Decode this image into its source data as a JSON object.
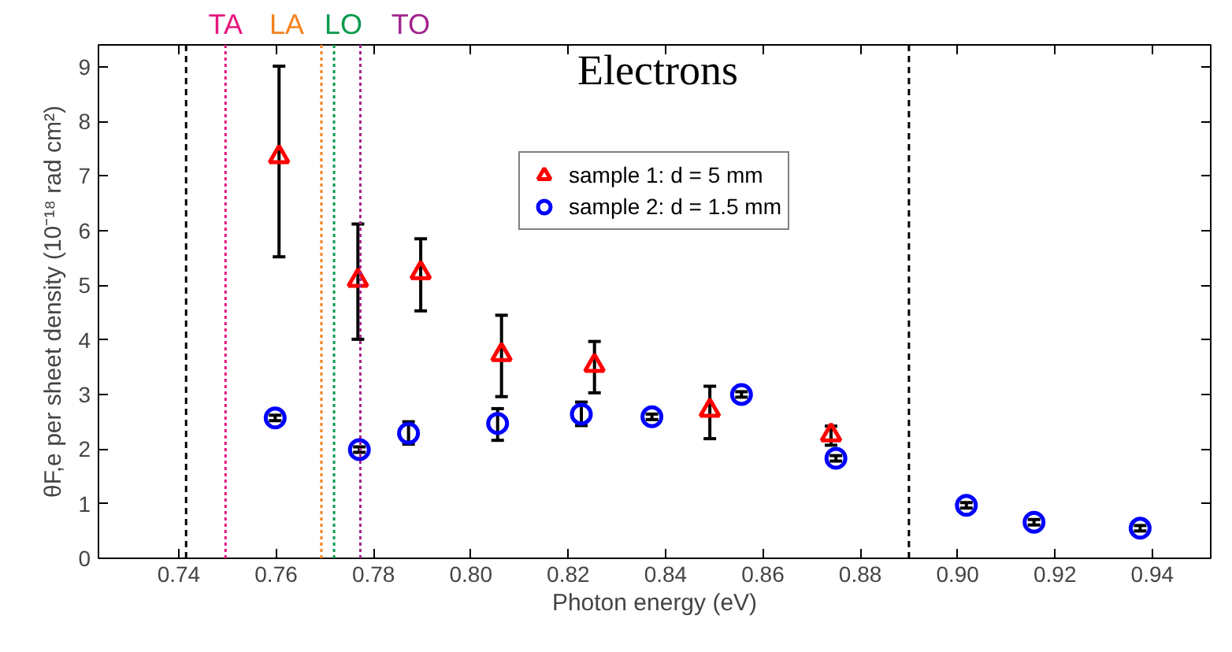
{
  "chart_data": {
    "type": "scatter",
    "xlabel": "Photon energy (eV)",
    "ylabel": "θF,e per sheet density (10⁻¹⁸ rad cm²)",
    "annotations": [
      "Electrons"
    ],
    "xlim": [
      0.7235,
      0.952
    ],
    "ylim": [
      0,
      9.4
    ],
    "xticks": [
      0.74,
      0.76,
      0.78,
      {
        "value": 0.8,
        "label": "0.80"
      },
      0.82,
      0.84,
      0.86,
      0.88,
      {
        "value": 0.9,
        "label": "0.90"
      },
      0.92,
      0.94
    ],
    "yticks": [
      0,
      1,
      2,
      3,
      4,
      5,
      6,
      7,
      8,
      9
    ],
    "legend": "top",
    "grid": false,
    "series": [
      {
        "name": "sample 1: d = 5 mm",
        "color": "#ff0000",
        "marker": "triangle",
        "x": [
          0.7606,
          0.7768,
          0.7897,
          0.8063,
          0.8254,
          0.8491,
          0.874
        ],
        "values": [
          7.35,
          5.09,
          5.23,
          3.73,
          3.53,
          2.71,
          2.26
        ],
        "errors": [
          [
            5.52,
            9.01
          ],
          [
            4.01,
            6.12
          ],
          [
            4.53,
            5.85
          ],
          [
            2.96,
            4.45
          ],
          [
            3.03,
            3.97
          ],
          [
            2.19,
            3.15
          ],
          [
            2.07,
            2.42
          ]
        ]
      },
      {
        "name": "sample 2: d = 1.5 mm",
        "color": "#0000ff",
        "marker": "circle",
        "x": [
          0.7598,
          0.7771,
          0.7872,
          0.8055,
          0.8227,
          0.8372,
          0.8556,
          0.875,
          0.9018,
          0.9157,
          0.9375
        ],
        "values": [
          2.57,
          1.99,
          2.29,
          2.47,
          2.64,
          2.59,
          3.0,
          1.83,
          0.97,
          0.66,
          0.55
        ],
        "errors": [
          0.05,
          0.05,
          [
            2.09,
            2.5
          ],
          [
            2.16,
            2.74
          ],
          [
            2.43,
            2.86
          ],
          0.05,
          0.05,
          0.05,
          0.05,
          0.05,
          0.05
        ]
      }
    ],
    "ref_lines": [
      {
        "axis": "x",
        "value": 0.7415,
        "color": "#000000",
        "line_style": "dashed"
      },
      {
        "axis": "x",
        "value": 0.89,
        "color": "#000000",
        "line_style": "dashed"
      },
      {
        "axis": "x",
        "value": 0.7496,
        "label": "TA",
        "color": "#e6157f",
        "line_style": "dotted"
      },
      {
        "axis": "x",
        "value": 0.7693,
        "label": "LA",
        "color": "#f58220",
        "line_style": "dotted"
      },
      {
        "axis": "x",
        "value": 0.7719,
        "label": "LO",
        "color": "#0a9a4c",
        "line_style": "dotted"
      },
      {
        "axis": "x",
        "value": 0.7773,
        "label": "TO",
        "color": "#a3238e",
        "line_style": "dotted"
      }
    ]
  }
}
